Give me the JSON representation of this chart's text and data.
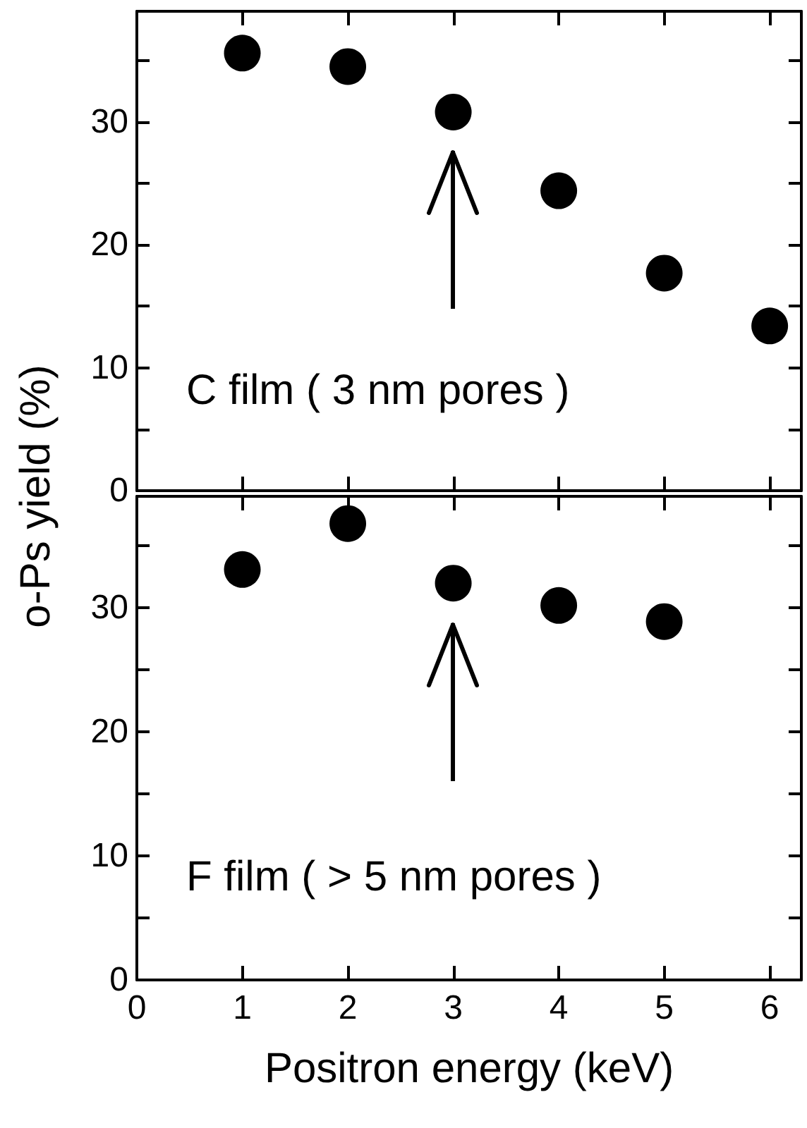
{
  "chart_data": [
    {
      "type": "scatter",
      "ylabel": "o-Ps yield (%)",
      "x": [
        1,
        2,
        3,
        4,
        5,
        6
      ],
      "marker": "circle",
      "xlim": [
        0,
        6.3
      ],
      "xticks": [
        0,
        1,
        2,
        3,
        4,
        5,
        6
      ],
      "ylim": [
        0,
        39
      ],
      "yticks": [
        0,
        {
          "value": 5,
          "label": null
        },
        10,
        {
          "value": 15,
          "label": null
        },
        20,
        {
          "value": 25,
          "label": null
        },
        30,
        {
          "value": 35,
          "label": null
        }
      ],
      "tick_labels": "y",
      "annotations": [
        "C film ( 3 nm pores )"
      ],
      "series": [
        {
          "color": "#000000",
          "values": [
            35.6,
            34.5,
            30.8,
            24.4,
            17.7,
            13.4
          ]
        }
      ]
    },
    {
      "type": "scatter",
      "xlabel": "Positron energy (keV)",
      "x": [
        1,
        2,
        3,
        4,
        5
      ],
      "marker": "circle",
      "xlim": [
        0,
        6.3
      ],
      "xticks": [
        0,
        1,
        2,
        3,
        4,
        5,
        6
      ],
      "ylim": [
        0,
        39
      ],
      "yticks": [
        0,
        {
          "value": 5,
          "label": null
        },
        10,
        {
          "value": 15,
          "label": null
        },
        20,
        {
          "value": 25,
          "label": null
        },
        30,
        {
          "value": 35,
          "label": null
        }
      ],
      "annotations": [
        "F film ( > 5 nm pores )"
      ],
      "series": [
        {
          "color": "#000000",
          "values": [
            33.1,
            36.8,
            32.0,
            30.2,
            28.9
          ]
        }
      ]
    }
  ]
}
